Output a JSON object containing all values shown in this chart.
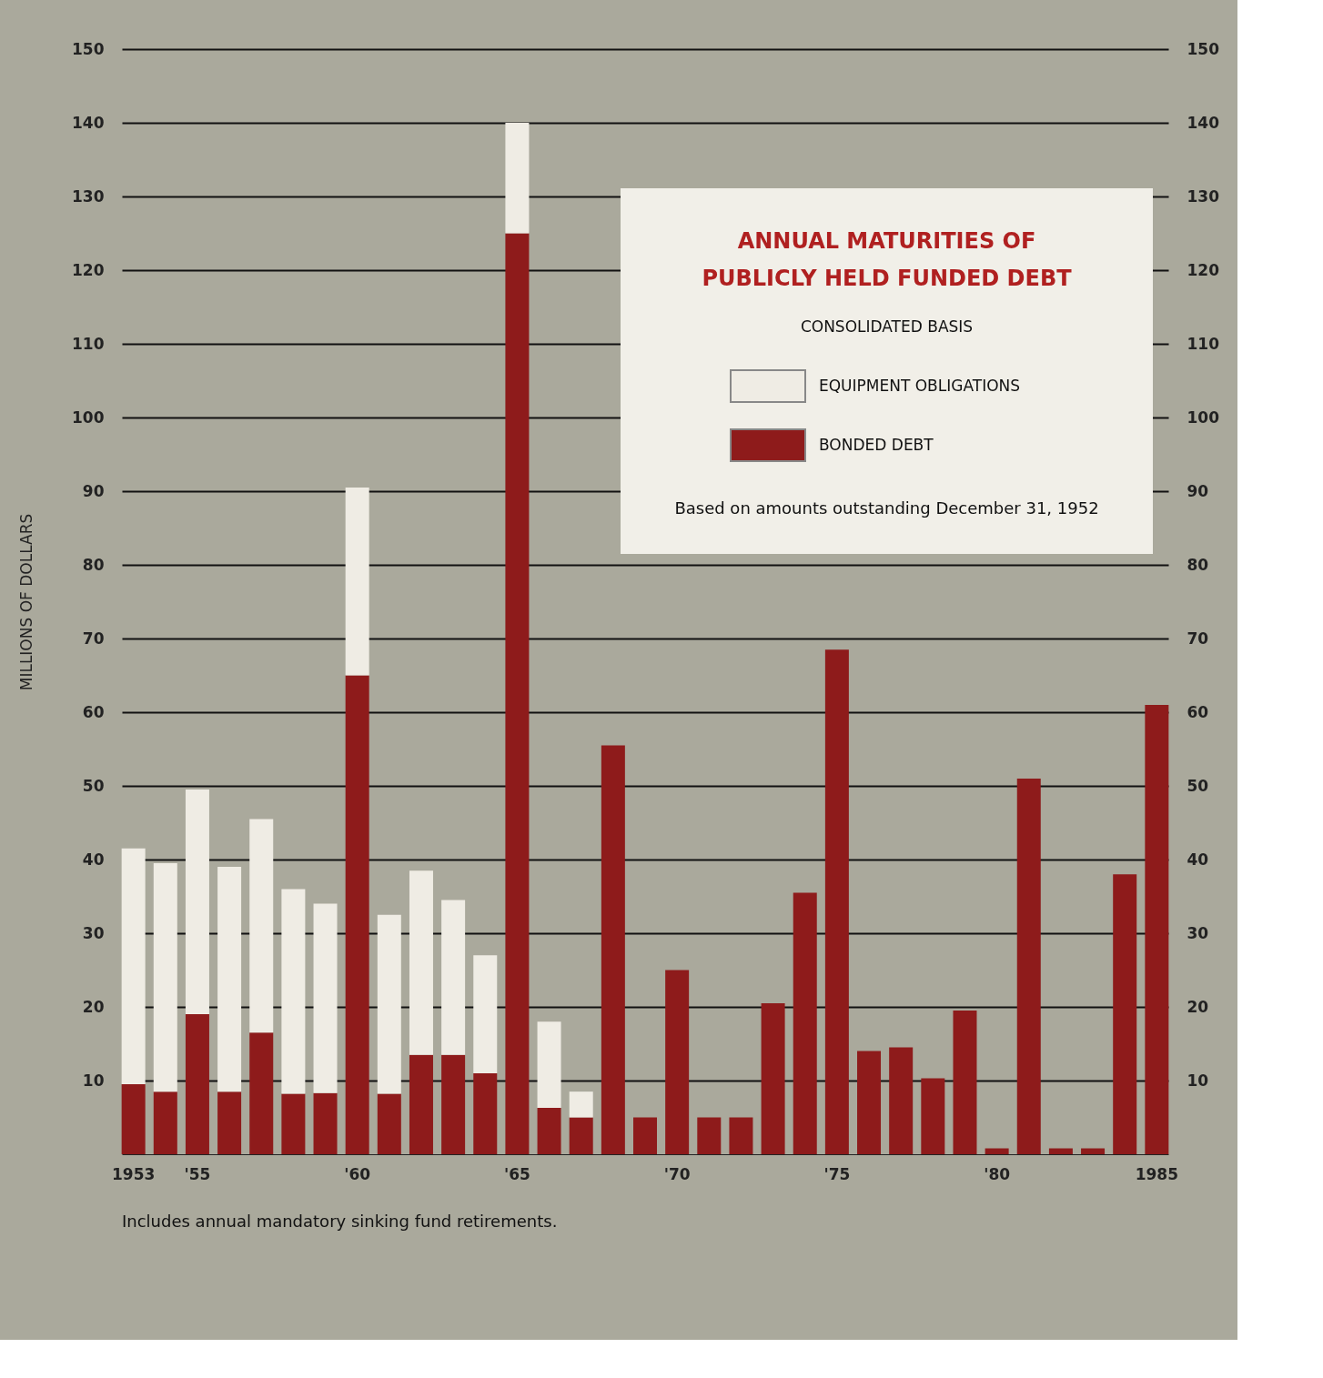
{
  "chart_data": {
    "type": "bar",
    "stacked": true,
    "title": "ANNUAL MATURITIES OF PUBLICLY HELD FUNDED DEBT",
    "subtitle": "CONSOLIDATED BASIS",
    "ylabel": "MILLIONS OF DOLLARS",
    "categories": [
      "1953",
      null,
      "'55",
      null,
      null,
      null,
      null,
      "'60",
      null,
      null,
      null,
      null,
      "'65",
      null,
      null,
      null,
      null,
      "'70",
      null,
      null,
      null,
      null,
      "'75",
      null,
      null,
      null,
      null,
      "'80",
      null,
      null,
      null,
      null,
      "1985"
    ],
    "series": [
      {
        "name": "BONDED DEBT",
        "color": "#8e1b1b",
        "values": [
          9.5,
          8.5,
          19,
          8.5,
          16.5,
          8.2,
          8.3,
          65,
          8.2,
          13.5,
          13.5,
          11,
          125,
          6.3,
          5,
          55.5,
          5,
          25,
          5,
          5,
          20.5,
          35.5,
          68.5,
          14,
          14.5,
          10.3,
          19.5,
          0.8,
          51,
          0.8,
          0.8,
          38,
          61
        ]
      },
      {
        "name": "EQUIPMENT OBLIGATIONS",
        "color": "#efece4",
        "values": [
          32,
          31,
          30.5,
          30.5,
          29,
          27.8,
          25.7,
          25.5,
          24.3,
          25,
          21,
          16,
          15,
          11.7,
          3.5,
          0,
          0,
          0,
          0,
          0,
          0,
          0,
          0,
          0,
          0,
          0,
          0,
          0,
          0,
          0,
          0,
          0,
          0
        ]
      }
    ],
    "ylim": [
      0,
      150
    ],
    "yticks": [
      10,
      20,
      30,
      40,
      50,
      60,
      70,
      80,
      90,
      100,
      110,
      120,
      130,
      140,
      150
    ],
    "y2lim": [
      0,
      150
    ],
    "y2ticks": [
      10,
      20,
      30,
      40,
      50,
      60,
      70,
      80,
      90,
      100,
      110,
      120,
      130,
      140,
      150
    ],
    "grid": "y",
    "legend": "top right",
    "annotations": [
      "Based on amounts outstanding December 31, 1952",
      "Includes annual mandatory sinking fund retirements."
    ]
  }
}
